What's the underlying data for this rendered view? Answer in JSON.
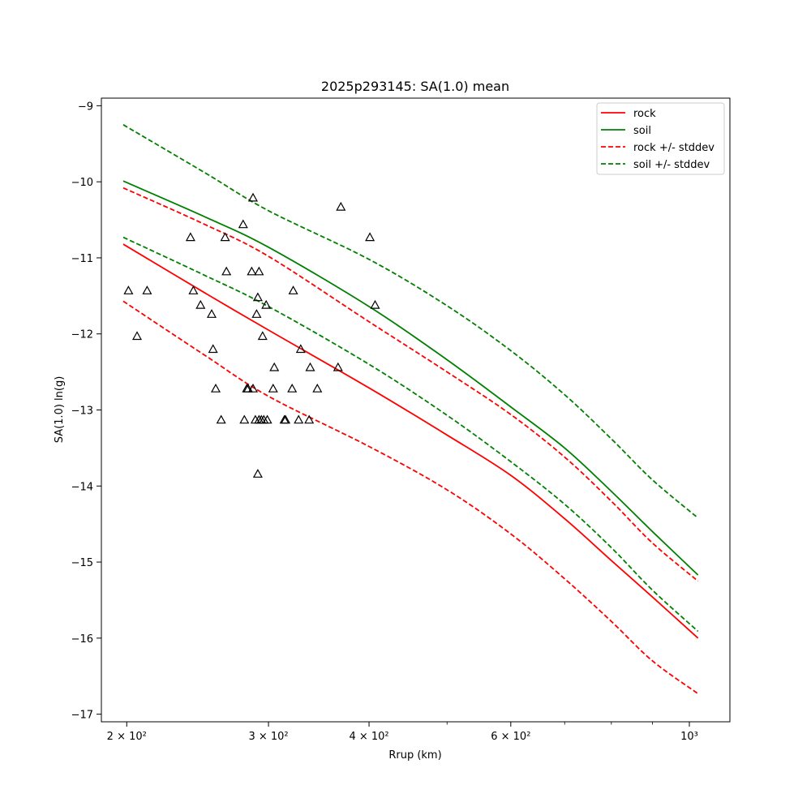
{
  "chart_data": {
    "type": "line",
    "title": "2025p293145: SA(1.0) mean",
    "xlabel": "Rrup (km)",
    "ylabel": "SA(1.0) ln(g)",
    "xscale": "log",
    "xlim": [
      186,
      1123
    ],
    "ylim": [
      -17.1,
      -8.9
    ],
    "x_ticks": [
      {
        "value": 200,
        "label": "2 × 10²"
      },
      {
        "value": 300,
        "label": "3 × 10²"
      },
      {
        "value": 400,
        "label": "4 × 10²"
      },
      {
        "value": 600,
        "label": "6 × 10²"
      },
      {
        "value": 1000,
        "label": "10³"
      }
    ],
    "x_minor_ticks": [
      500,
      700,
      800,
      900
    ],
    "y_ticks": [
      {
        "value": -9,
        "label": "−9"
      },
      {
        "value": -10,
        "label": "−10"
      },
      {
        "value": -11,
        "label": "−11"
      },
      {
        "value": -12,
        "label": "−12"
      },
      {
        "value": -13,
        "label": "−13"
      },
      {
        "value": -14,
        "label": "−14"
      },
      {
        "value": -15,
        "label": "−15"
      },
      {
        "value": -16,
        "label": "−16"
      },
      {
        "value": -17,
        "label": "−17"
      }
    ],
    "grid": false,
    "legend_position": "top-right",
    "series": [
      {
        "name": "rock",
        "color": "#ff0000",
        "dash": false,
        "x": [
          198,
          250,
          300,
          400,
          500,
          600,
          700,
          800,
          900,
          1025
        ],
        "y": [
          -10.82,
          -11.46,
          -11.95,
          -12.71,
          -13.33,
          -13.86,
          -14.43,
          -14.98,
          -15.46,
          -16.0
        ]
      },
      {
        "name": "soil",
        "color": "#008000",
        "dash": false,
        "x": [
          198,
          250,
          300,
          400,
          500,
          600,
          700,
          800,
          900,
          1025
        ],
        "y": [
          -9.99,
          -10.46,
          -10.86,
          -11.64,
          -12.34,
          -12.96,
          -13.5,
          -14.07,
          -14.6,
          -15.17
        ]
      },
      {
        "name": "rock +/- stddev",
        "color": "#ff0000",
        "dash": true,
        "x": [
          198,
          250,
          300,
          400,
          500,
          600,
          700,
          800,
          900,
          1025
        ],
        "y": [
          -10.08,
          -10.56,
          -10.98,
          -11.84,
          -12.5,
          -13.06,
          -13.62,
          -14.2,
          -14.75,
          -15.25
        ]
      },
      {
        "name": "",
        "color": "#ff0000",
        "dash": true,
        "x": [
          198,
          250,
          300,
          400,
          500,
          600,
          700,
          800,
          900,
          1025
        ],
        "y": [
          -11.57,
          -12.28,
          -12.82,
          -13.48,
          -14.05,
          -14.63,
          -15.22,
          -15.78,
          -16.3,
          -16.73
        ]
      },
      {
        "name": "soil +/- stddev",
        "color": "#008000",
        "dash": true,
        "x": [
          198,
          250,
          300,
          400,
          500,
          600,
          700,
          800,
          900,
          1025
        ],
        "y": [
          -9.25,
          -9.88,
          -10.38,
          -11.02,
          -11.63,
          -12.22,
          -12.8,
          -13.38,
          -13.92,
          -14.42
        ]
      },
      {
        "name": "",
        "color": "#008000",
        "dash": true,
        "x": [
          198,
          250,
          300,
          400,
          500,
          600,
          700,
          800,
          900,
          1025
        ],
        "y": [
          -10.73,
          -11.23,
          -11.64,
          -12.4,
          -13.07,
          -13.68,
          -14.24,
          -14.81,
          -15.37,
          -15.91
        ]
      }
    ],
    "observations": {
      "marker": "triangle",
      "points": [
        [
          201,
          -11.43
        ],
        [
          212,
          -11.43
        ],
        [
          206,
          -12.03
        ],
        [
          240,
          -10.73
        ],
        [
          242,
          -11.43
        ],
        [
          247,
          -11.62
        ],
        [
          255,
          -11.74
        ],
        [
          256,
          -12.2
        ],
        [
          258,
          -12.72
        ],
        [
          262,
          -13.13
        ],
        [
          265,
          -10.73
        ],
        [
          266,
          -11.18
        ],
        [
          279,
          -10.56
        ],
        [
          280,
          -13.13
        ],
        [
          282,
          -12.72
        ],
        [
          283,
          -12.72
        ],
        [
          286,
          -11.18
        ],
        [
          287,
          -12.72
        ],
        [
          287,
          -10.21
        ],
        [
          289,
          -13.13
        ],
        [
          290,
          -11.74
        ],
        [
          291,
          -11.52
        ],
        [
          291,
          -13.84
        ],
        [
          292,
          -11.18
        ],
        [
          292,
          -13.13
        ],
        [
          294,
          -13.13
        ],
        [
          295,
          -12.03
        ],
        [
          296,
          -13.13
        ],
        [
          298,
          -11.62
        ],
        [
          299,
          -13.13
        ],
        [
          304,
          -12.72
        ],
        [
          305,
          -12.44
        ],
        [
          314,
          -13.13
        ],
        [
          315,
          -13.13
        ],
        [
          321,
          -12.72
        ],
        [
          322,
          -11.43
        ],
        [
          327,
          -13.13
        ],
        [
          329,
          -12.2
        ],
        [
          337,
          -13.13
        ],
        [
          338,
          -12.44
        ],
        [
          345,
          -12.72
        ],
        [
          366,
          -12.44
        ],
        [
          369,
          -10.33
        ],
        [
          401,
          -10.73
        ],
        [
          407,
          -11.62
        ]
      ]
    }
  }
}
